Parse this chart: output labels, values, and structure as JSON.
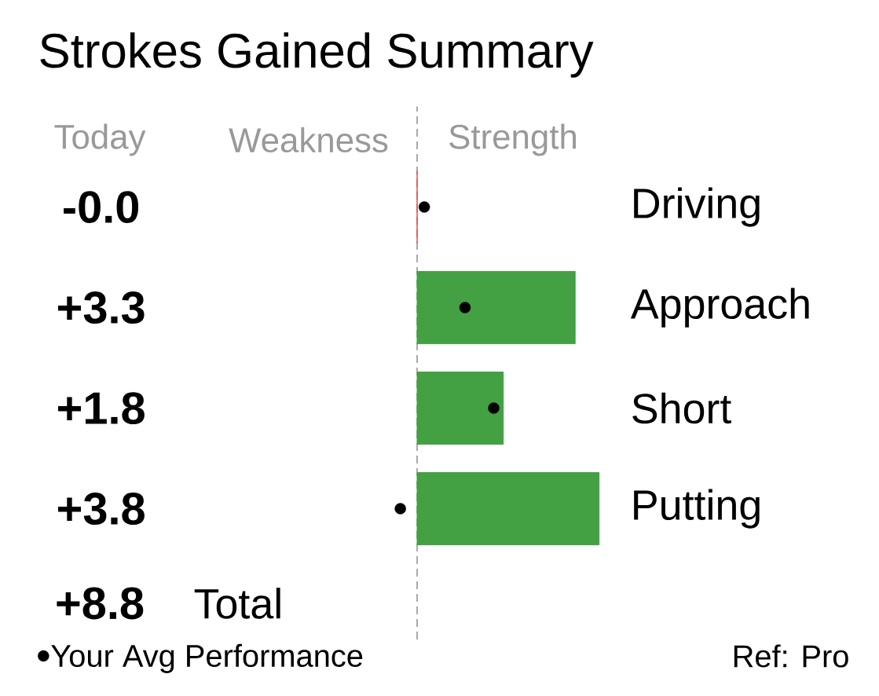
{
  "chart_data": {
    "type": "bar",
    "orientation": "horizontal",
    "title": "Strokes Gained Summary",
    "categories": [
      "Driving",
      "Approach",
      "Short",
      "Putting"
    ],
    "series": [
      {
        "colors": [
          "#d9534f",
          "#43a043",
          "#43a043",
          "#43a043"
        ],
        "values": [
          -0.0,
          3.3,
          1.8,
          3.8
        ],
        "value_labels": [
          "-0.0",
          "+3.3",
          "+1.8",
          "+3.8"
        ]
      },
      {
        "type": "scatter",
        "name": "Your Avg Performance",
        "color": "#000000",
        "values": [
          0.15,
          1.0,
          1.6,
          -0.35
        ]
      }
    ],
    "tick_labels": false,
    "ref_lines": [
      {
        "axis": "x",
        "value": 0,
        "color": "#aaaaaa",
        "line_style": "dashed"
      }
    ],
    "legend": "bottom left",
    "annotations": [
      "Today",
      "Weakness",
      "Strength",
      "+8.8",
      "Total",
      "Ref: Pro"
    ]
  }
}
